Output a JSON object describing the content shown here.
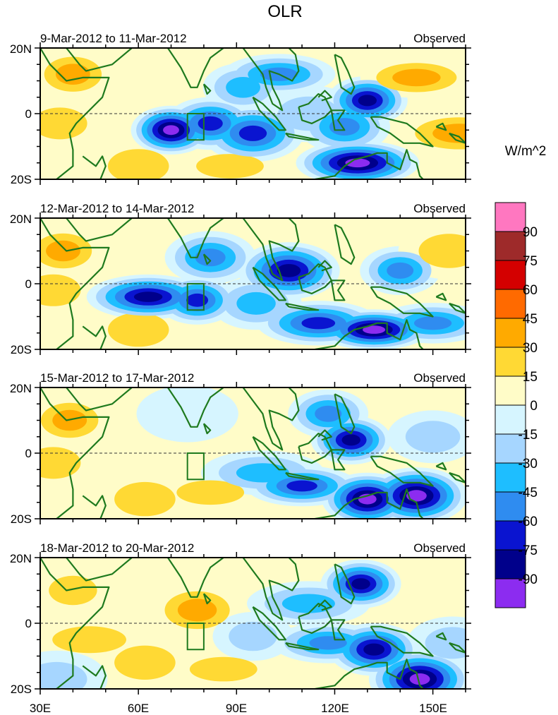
{
  "chart_data": {
    "type": "heatmap",
    "title": "OLR",
    "units": "W/m^2",
    "x_ticks": [
      "30E",
      "60E",
      "90E",
      "120E",
      "150E"
    ],
    "x_tick_values": [
      30,
      60,
      90,
      120,
      150
    ],
    "xlim": [
      30,
      160
    ],
    "y_ticks": [
      "20N",
      "0",
      "20S"
    ],
    "y_tick_values": [
      20,
      0,
      -20
    ],
    "ylim": [
      -20,
      20
    ],
    "box_region": {
      "lon": [
        75,
        80
      ],
      "lat": [
        -8,
        0
      ]
    },
    "colorbar": {
      "labels": [
        "90",
        "75",
        "60",
        "45",
        "30",
        "15",
        "0",
        "-15",
        "-30",
        "-45",
        "-60",
        "-75",
        "-90"
      ],
      "levels": [
        90,
        75,
        60,
        45,
        30,
        15,
        0,
        -15,
        -30,
        -45,
        -60,
        -75,
        -90
      ],
      "colors": [
        "#ff77c0",
        "#9e2a2a",
        "#d40000",
        "#ff6a00",
        "#ffaa00",
        "#ffd934",
        "#fffcc8",
        "#d6f5ff",
        "#a6d6ff",
        "#1ebeff",
        "#2f8cf0",
        "#0a14d0",
        "#00008b",
        "#8c2cf0"
      ]
    },
    "panels": [
      {
        "label": "9-Mar-2012 to 11-Mar-2012",
        "tag": "Observed",
        "anomalies": [
          {
            "lon": 40,
            "lat": 12,
            "value": 38
          },
          {
            "lon": 36,
            "lat": -3,
            "value": 22
          },
          {
            "lon": 60,
            "lat": -16,
            "value": 22
          },
          {
            "lon": 88,
            "lat": -16,
            "value": 18
          },
          {
            "lon": 48,
            "lat": 6,
            "value": 12
          },
          {
            "lon": 70,
            "lat": -5,
            "value": -92
          },
          {
            "lon": 82,
            "lat": -3,
            "value": -64
          },
          {
            "lon": 95,
            "lat": -6,
            "value": -66
          },
          {
            "lon": 103,
            "lat": 12,
            "value": -58
          },
          {
            "lon": 127,
            "lat": -15,
            "value": -96
          },
          {
            "lon": 130,
            "lat": 4,
            "value": -86
          },
          {
            "lon": 123,
            "lat": -4,
            "value": -46
          },
          {
            "lon": 112,
            "lat": 0,
            "value": -30
          },
          {
            "lon": 145,
            "lat": 11,
            "value": 34
          },
          {
            "lon": 158,
            "lat": -6,
            "value": 44
          },
          {
            "lon": 92,
            "lat": 8,
            "value": -36
          }
        ]
      },
      {
        "label": "12-Mar-2012 to 14-Mar-2012",
        "tag": "Observed",
        "anomalies": [
          {
            "lon": 37,
            "lat": 10,
            "value": 42
          },
          {
            "lon": 34,
            "lat": -2,
            "value": 28
          },
          {
            "lon": 60,
            "lat": -14,
            "value": 26
          },
          {
            "lon": 46,
            "lat": 8,
            "value": 14
          },
          {
            "lon": 63,
            "lat": -4,
            "value": -82
          },
          {
            "lon": 78,
            "lat": -5,
            "value": -68
          },
          {
            "lon": 82,
            "lat": 8,
            "value": -46
          },
          {
            "lon": 106,
            "lat": 4,
            "value": -88
          },
          {
            "lon": 132,
            "lat": -14,
            "value": -96
          },
          {
            "lon": 115,
            "lat": -12,
            "value": -62
          },
          {
            "lon": 140,
            "lat": 4,
            "value": -46
          },
          {
            "lon": 96,
            "lat": -6,
            "value": -32
          },
          {
            "lon": 155,
            "lat": 10,
            "value": 26
          },
          {
            "lon": 150,
            "lat": -12,
            "value": -52
          }
        ]
      },
      {
        "label": "15-Mar-2012 to 17-Mar-2012",
        "tag": "Observed",
        "anomalies": [
          {
            "lon": 39,
            "lat": 10,
            "value": 42
          },
          {
            "lon": 34,
            "lat": -3,
            "value": 22
          },
          {
            "lon": 62,
            "lat": -14,
            "value": 26
          },
          {
            "lon": 82,
            "lat": -12,
            "value": 22
          },
          {
            "lon": 55,
            "lat": 6,
            "value": 12
          },
          {
            "lon": 125,
            "lat": 4,
            "value": -82
          },
          {
            "lon": 130,
            "lat": -14,
            "value": -96
          },
          {
            "lon": 145,
            "lat": -13,
            "value": -92
          },
          {
            "lon": 110,
            "lat": -10,
            "value": -66
          },
          {
            "lon": 98,
            "lat": -6,
            "value": -40
          },
          {
            "lon": 118,
            "lat": 12,
            "value": -48
          },
          {
            "lon": 150,
            "lat": 5,
            "value": -22
          },
          {
            "lon": 75,
            "lat": 12,
            "value": -10
          }
        ]
      },
      {
        "label": "18-Mar-2012 to 20-Mar-2012",
        "tag": "Observed",
        "anomalies": [
          {
            "lon": 40,
            "lat": 10,
            "value": 20
          },
          {
            "lon": 78,
            "lat": 4,
            "value": 38
          },
          {
            "lon": 62,
            "lat": -12,
            "value": 30
          },
          {
            "lon": 86,
            "lat": -14,
            "value": 22
          },
          {
            "lon": 45,
            "lat": -5,
            "value": 18
          },
          {
            "lon": 128,
            "lat": 12,
            "value": -88
          },
          {
            "lon": 132,
            "lat": -8,
            "value": -86
          },
          {
            "lon": 146,
            "lat": -17,
            "value": -96
          },
          {
            "lon": 118,
            "lat": -6,
            "value": -48
          },
          {
            "lon": 112,
            "lat": 6,
            "value": -40
          },
          {
            "lon": 95,
            "lat": -4,
            "value": -22
          },
          {
            "lon": 156,
            "lat": -6,
            "value": -26
          },
          {
            "lon": 35,
            "lat": -17,
            "value": -28
          }
        ]
      }
    ]
  }
}
